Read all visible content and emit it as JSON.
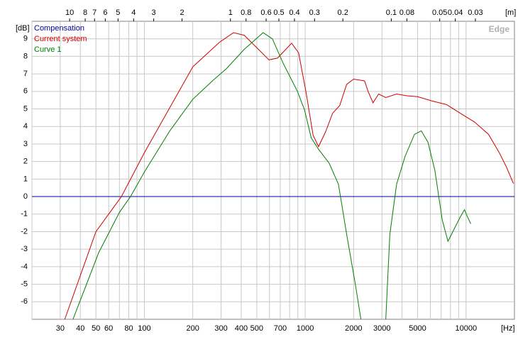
{
  "chart_data": {
    "type": "line",
    "x_label": "[Hz]",
    "y_label": "[dB]",
    "x2_label": "[m]",
    "watermark": "Edge",
    "xlog": true,
    "xlim": [
      20,
      20000
    ],
    "xticks": [
      30,
      40,
      50,
      60,
      80,
      100,
      200,
      300,
      400,
      500,
      700,
      1000,
      2000,
      3000,
      5000,
      10000
    ],
    "xgrid_minor": [
      20,
      70,
      90,
      600,
      800,
      900,
      4000,
      6000,
      7000,
      8000,
      9000
    ],
    "x2lim": [
      17.15,
      0.01715
    ],
    "x2ticks": [
      10,
      8,
      7,
      6,
      5,
      4,
      3,
      2,
      1,
      0.8,
      0.6,
      0.5,
      0.4,
      0.3,
      0.2,
      0.1,
      0.08,
      0.05,
      0.04,
      0.03
    ],
    "ylim": [
      -7,
      10
    ],
    "yticks": [
      9,
      8,
      7,
      6,
      5,
      4,
      3,
      2,
      1,
      0,
      -1,
      -2,
      -3,
      -4,
      -5,
      -6
    ],
    "grid": true,
    "legend": "top-left",
    "series": [
      {
        "name": "Compensation",
        "color": "#0000a0",
        "x": [
          20,
          20000
        ],
        "values": [
          0,
          0
        ]
      },
      {
        "name": "Current system",
        "color": "#d00000",
        "x": [
          32,
          50,
          72,
          100,
          200,
          293,
          358,
          418,
          512,
          595,
          673,
          823,
          910,
          1010,
          1120,
          1210,
          1340,
          1480,
          1640,
          1810,
          2000,
          2340,
          2460,
          2640,
          2860,
          3170,
          3700,
          4290,
          5000,
          6160,
          7560,
          9220,
          11300,
          13800,
          16100,
          17800,
          19700
        ],
        "values": [
          -7,
          -2,
          0,
          2.5,
          7.4,
          8.8,
          9.35,
          9.2,
          8.4,
          7.8,
          7.9,
          8.75,
          8.2,
          6.0,
          3.5,
          2.85,
          3.7,
          4.75,
          5.2,
          6.4,
          6.7,
          6.6,
          6.0,
          5.35,
          5.85,
          5.65,
          5.85,
          5.75,
          5.7,
          5.45,
          5.25,
          4.75,
          4.25,
          3.55,
          2.5,
          1.7,
          0.75
        ]
      },
      {
        "name": "Curve 1",
        "color": "#008000",
        "x": [
          36,
          52,
          70,
          82,
          100,
          144,
          200,
          265,
          324,
          418,
          548,
          625,
          730,
          895,
          990,
          1090,
          1210,
          1410,
          1610,
          1810,
          2050,
          2220,
          2700,
          3170,
          3360,
          3700,
          4180,
          4780,
          5270,
          5800,
          6400,
          7120,
          7720,
          8330,
          9220,
          9780,
          10200,
          10700
        ],
        "values": [
          -7,
          -3.2,
          -0.9,
          0,
          1.4,
          3.75,
          5.55,
          6.6,
          7.3,
          8.4,
          9.35,
          9.0,
          7.6,
          6.0,
          4.95,
          3.35,
          2.7,
          1.9,
          0.7,
          -2.15,
          -5.0,
          -7,
          null,
          -7,
          -2.15,
          0.7,
          2.3,
          3.55,
          3.75,
          3.1,
          1.5,
          -1.35,
          -2.55,
          -1.95,
          -1.15,
          -0.75,
          -1.15,
          -1.55
        ]
      }
    ]
  }
}
